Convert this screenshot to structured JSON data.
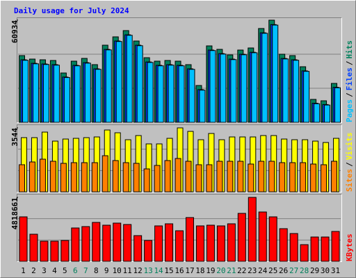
{
  "chart_data": [
    {
      "type": "bar",
      "title": "Daily usage for July 2024",
      "title_color": "#0000ff",
      "ylim": [
        0,
        60934
      ],
      "yticks": [
        60934
      ],
      "separator": "/",
      "series": [
        {
          "name": "Hits",
          "color": "#00805c",
          "values": [
            39794,
            37720,
            37305,
            36891,
            29430,
            36477,
            38135,
            34405,
            46011,
            50985,
            54715,
            48498,
            38550,
            36477,
            36891,
            36477,
            34405,
            21969,
            45596,
            43524,
            40208,
            43109,
            44353,
            55959,
            60934,
            40622,
            39794,
            33161,
            13679,
            12850,
            23213
          ]
        },
        {
          "name": "Files",
          "color": "#0040ff",
          "values": [
            37300,
            35200,
            34800,
            34400,
            27000,
            34000,
            35600,
            31900,
            43500,
            48500,
            52200,
            46000,
            36000,
            34000,
            34400,
            34000,
            31900,
            19500,
            43100,
            41000,
            37700,
            40600,
            41800,
            53400,
            58300,
            38100,
            37300,
            30700,
            11400,
            10600,
            20900
          ]
        },
        {
          "name": "Pages",
          "color": "#00c0ff",
          "values": [
            37000,
            34900,
            34500,
            34100,
            26700,
            33700,
            35300,
            31600,
            43200,
            48200,
            51900,
            45700,
            35700,
            33700,
            34100,
            33700,
            31600,
            19200,
            42800,
            40700,
            37400,
            40300,
            41500,
            53100,
            58000,
            37800,
            37000,
            30400,
            11100,
            10300,
            20600
          ]
        }
      ]
    },
    {
      "type": "bar",
      "ylim": [
        0,
        3544
      ],
      "yticks": [
        3544
      ],
      "separator": "/",
      "series": [
        {
          "name": "Visits",
          "color": "#ffff00",
          "values": [
            3003,
            3003,
            3311,
            2811,
            2926,
            2965,
            3003,
            3042,
            3427,
            3273,
            2888,
            3119,
            2657,
            2657,
            2965,
            3544,
            3350,
            2888,
            3234,
            2888,
            3042,
            3042,
            3042,
            3119,
            3119,
            2926,
            2888,
            2888,
            2811,
            2734,
            2965
          ]
        },
        {
          "name": "Sites",
          "color": "#ff8000",
          "values": [
            1502,
            1656,
            1810,
            1694,
            1579,
            1617,
            1617,
            1617,
            2002,
            1733,
            1617,
            1579,
            1271,
            1463,
            1733,
            1848,
            1694,
            1502,
            1502,
            1694,
            1694,
            1694,
            1540,
            1694,
            1694,
            1617,
            1617,
            1617,
            1540,
            1502,
            1694
          ]
        }
      ]
    },
    {
      "type": "bar",
      "ylim": [
        0,
        4818661
      ],
      "yticks": [
        4818661
      ],
      "series": [
        {
          "name": "KBytes",
          "color": "#ff0000",
          "values": [
            3352128,
            2042703,
            1518933,
            1518933,
            1571310,
            2514096,
            2618850,
            2933112,
            2723604,
            2880735,
            2775981,
            1937949,
            1571310,
            2671227,
            2828358,
            2304588,
            3299751,
            2671227,
            2723604,
            2671227,
            2828358,
            3614013,
            4818661,
            3718767,
            3352128,
            2461719,
            2095080,
            1257048,
            1833195,
            1833195,
            2252211
          ]
        }
      ],
      "categories": [
        "1",
        "2",
        "3",
        "4",
        "5",
        "6",
        "7",
        "8",
        "9",
        "10",
        "11",
        "12",
        "13",
        "14",
        "15",
        "16",
        "17",
        "18",
        "19",
        "20",
        "21",
        "22",
        "23",
        "24",
        "25",
        "26",
        "27",
        "28",
        "29",
        "30",
        "31"
      ],
      "category_colors": [
        "#000000",
        "#000000",
        "#000000",
        "#000000",
        "#000000",
        "#00805c",
        "#00805c",
        "#000000",
        "#000000",
        "#000000",
        "#000000",
        "#000000",
        "#00805c",
        "#00805c",
        "#000000",
        "#000000",
        "#000000",
        "#000000",
        "#000000",
        "#00805c",
        "#00805c",
        "#000000",
        "#000000",
        "#000000",
        "#000000",
        "#000000",
        "#00805c",
        "#00805c",
        "#000000",
        "#000000",
        "#000000"
      ]
    }
  ]
}
